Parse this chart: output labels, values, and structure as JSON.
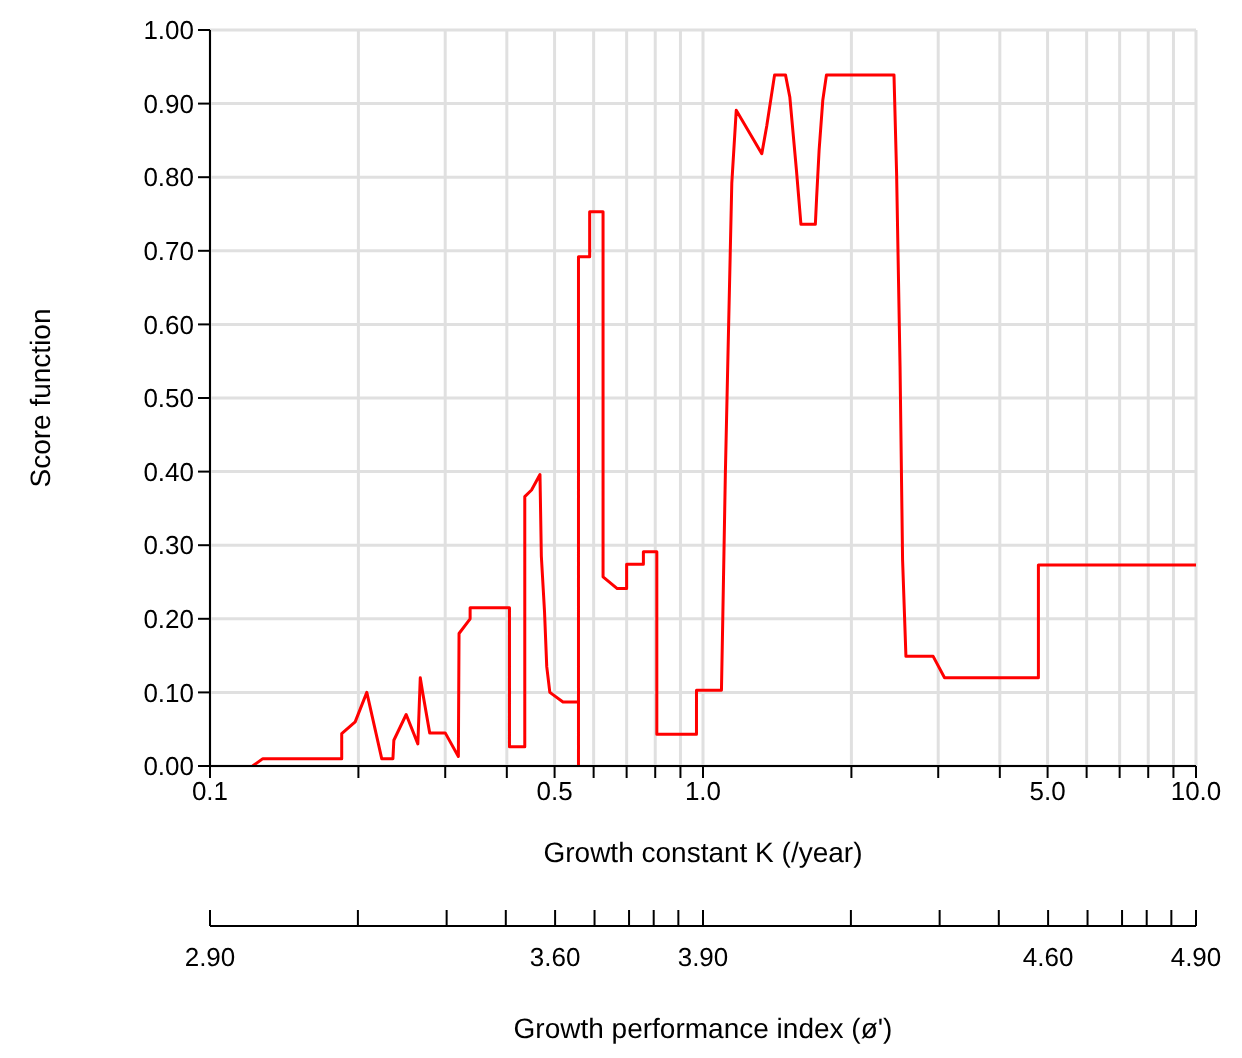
{
  "chart_data": {
    "type": "line",
    "ylabel": "Score function",
    "xlabel": "Growth constant K (/year)",
    "x2label": "Growth performance index (ø')",
    "log": "x",
    "grid": true,
    "xlim": [
      0.1,
      10
    ],
    "ylim": [
      0,
      1
    ],
    "xticks": [
      {
        "value": 0.1,
        "label": "0.1"
      },
      {
        "value": 0.2,
        "label": null
      },
      {
        "value": 0.3,
        "label": null
      },
      {
        "value": 0.4,
        "label": null
      },
      {
        "value": 0.5,
        "label": "0.5"
      },
      {
        "value": 0.6,
        "label": null
      },
      {
        "value": 0.7,
        "label": null
      },
      {
        "value": 0.8,
        "label": null
      },
      {
        "value": 0.9,
        "label": null
      },
      {
        "value": 1,
        "label": "1.0"
      },
      {
        "value": 2,
        "label": null
      },
      {
        "value": 3,
        "label": null
      },
      {
        "value": 4,
        "label": null
      },
      {
        "value": 5,
        "label": "5.0"
      },
      {
        "value": 6,
        "label": null
      },
      {
        "value": 7,
        "label": null
      },
      {
        "value": 8,
        "label": null
      },
      {
        "value": 9,
        "label": null
      },
      {
        "value": 10,
        "label": "10.0"
      }
    ],
    "yticks": [
      {
        "value": 0,
        "label": "0.00"
      },
      {
        "value": 0.1,
        "label": "0.10"
      },
      {
        "value": 0.2,
        "label": "0.20"
      },
      {
        "value": 0.3,
        "label": "0.30"
      },
      {
        "value": 0.4,
        "label": "0.40"
      },
      {
        "value": 0.5,
        "label": "0.50"
      },
      {
        "value": 0.6,
        "label": "0.60"
      },
      {
        "value": 0.7,
        "label": "0.70"
      },
      {
        "value": 0.8,
        "label": "0.80"
      },
      {
        "value": 0.9,
        "label": "0.90"
      },
      {
        "value": 1,
        "label": "1.00"
      }
    ],
    "x2lim": [
      2.9,
      4.9
    ],
    "x2ticks": [
      {
        "value": 2.9,
        "label": "2.90"
      },
      {
        "value": 3.2,
        "label": null
      },
      {
        "value": 3.38,
        "label": null
      },
      {
        "value": 3.5,
        "label": null
      },
      {
        "value": 3.6,
        "label": "3.60"
      },
      {
        "value": 3.68,
        "label": null
      },
      {
        "value": 3.75,
        "label": null
      },
      {
        "value": 3.8,
        "label": null
      },
      {
        "value": 3.85,
        "label": null
      },
      {
        "value": 3.9,
        "label": "3.90"
      },
      {
        "value": 4.2,
        "label": null
      },
      {
        "value": 4.38,
        "label": null
      },
      {
        "value": 4.5,
        "label": null
      },
      {
        "value": 4.6,
        "label": "4.60"
      },
      {
        "value": 4.68,
        "label": null
      },
      {
        "value": 4.75,
        "label": null
      },
      {
        "value": 4.8,
        "label": null
      },
      {
        "value": 4.85,
        "label": null
      },
      {
        "value": 4.9,
        "label": "4.90"
      }
    ],
    "series": [
      {
        "color": "#ff0000",
        "x": [
          0.122,
          0.128,
          0.185,
          0.185,
          0.197,
          0.208,
          0.223,
          0.235,
          0.236,
          0.25,
          0.264,
          0.267,
          0.27,
          0.279,
          0.3,
          0.319,
          0.32,
          0.337,
          0.337,
          0.405,
          0.405,
          0.435,
          0.435,
          0.449,
          0.467,
          0.47,
          0.477,
          0.482,
          0.489,
          0.52,
          0.559,
          0.559,
          0.559,
          0.589,
          0.589,
          0.627,
          0.627,
          0.67,
          0.7,
          0.7,
          0.757,
          0.757,
          0.806,
          0.806,
          0.97,
          0.97,
          1.09,
          1.097,
          1.11,
          1.127,
          1.144,
          1.168,
          1.316,
          1.347,
          1.397,
          1.47,
          1.5,
          1.547,
          1.58,
          1.69,
          1.7,
          1.72,
          1.75,
          1.78,
          2.44,
          2.47,
          2.51,
          2.54,
          2.58,
          2.93,
          3.09,
          4.79,
          4.79,
          10
        ],
        "values": [
          0,
          0.01,
          0.01,
          0.044,
          0.06,
          0.1,
          0.01,
          0.01,
          0.035,
          0.07,
          0.03,
          0.12,
          0.1,
          0.045,
          0.045,
          0.013,
          0.18,
          0.2,
          0.215,
          0.215,
          0.026,
          0.026,
          0.366,
          0.375,
          0.396,
          0.285,
          0.21,
          0.135,
          0.1,
          0.087,
          0.087,
          0,
          0.692,
          0.692,
          0.753,
          0.753,
          0.257,
          0.241,
          0.241,
          0.274,
          0.274,
          0.291,
          0.291,
          0.043,
          0.043,
          0.103,
          0.103,
          0.203,
          0.396,
          0.597,
          0.792,
          0.891,
          0.832,
          0.87,
          0.939,
          0.939,
          0.909,
          0.81,
          0.736,
          0.736,
          0.772,
          0.837,
          0.905,
          0.939,
          0.939,
          0.805,
          0.543,
          0.28,
          0.149,
          0.149,
          0.12,
          0.12,
          0.273,
          0.273
        ]
      }
    ]
  }
}
